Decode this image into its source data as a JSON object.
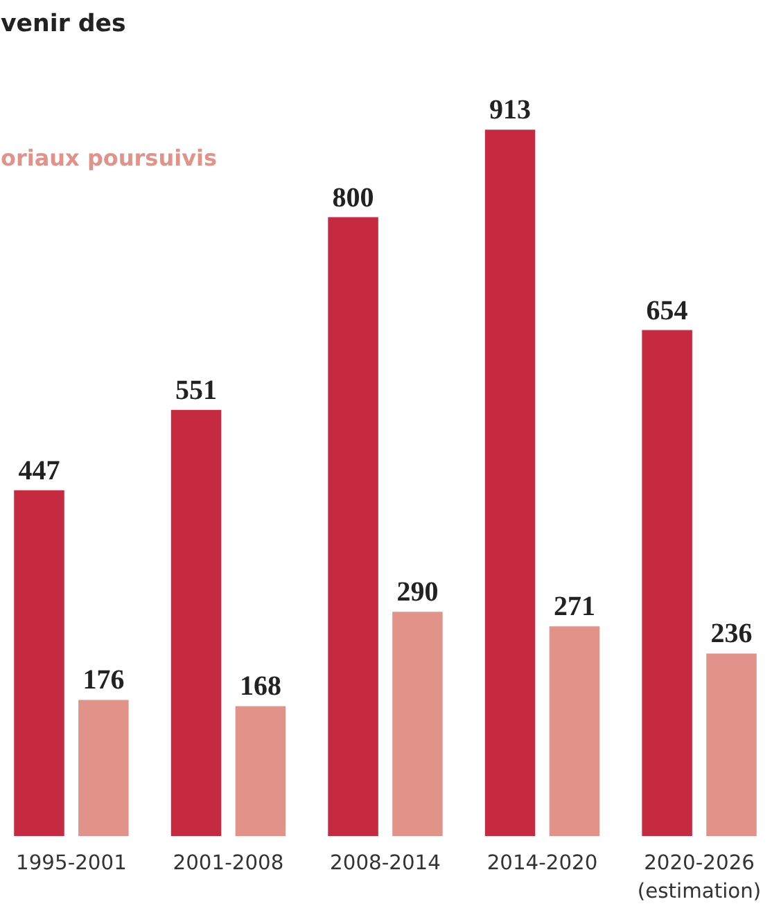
{
  "chart_data": {
    "type": "bar",
    "title": "venir des",
    "categories": [
      "1995-2001",
      "2001-2008",
      "2008-2014",
      "2014-2020",
      "2020-2026\n(estimation)"
    ],
    "series": [
      {
        "color": "#c62a40",
        "values": [
          447,
          551,
          800,
          913,
          654
        ]
      },
      {
        "name": "oriaux poursuivis",
        "color": "#e29389",
        "values": [
          176,
          168,
          290,
          271,
          236
        ]
      }
    ],
    "data_labels": true
  }
}
